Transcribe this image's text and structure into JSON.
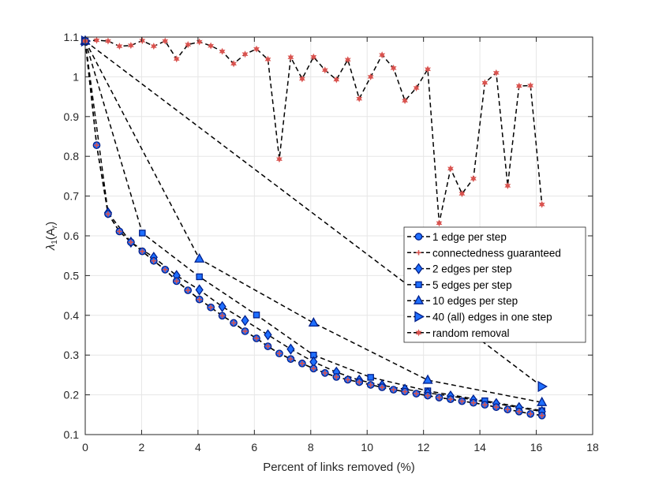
{
  "chart_data": {
    "type": "line",
    "title": "",
    "xlabel": "Percent of links removed (%)",
    "ylabel_main": "λ",
    "ylabel_sub": "1",
    "ylabel_arg": "(A",
    "ylabel_arg_sub": "r",
    "ylabel_close": ")",
    "xlim": [
      0,
      18
    ],
    "ylim": [
      0.1,
      1.1
    ],
    "x_ticks": [
      0,
      2,
      4,
      6,
      8,
      10,
      12,
      14,
      16,
      18
    ],
    "y_ticks": [
      0.1,
      0.2,
      0.3,
      0.4,
      0.5,
      0.6,
      0.7,
      0.8,
      0.9,
      1,
      1.1
    ],
    "x_tick_labels": [
      "0",
      "2",
      "4",
      "6",
      "8",
      "10",
      "12",
      "14",
      "16",
      "18"
    ],
    "y_tick_labels": [
      "0.1",
      "0.2",
      "0.3",
      "0.4",
      "0.5",
      "0.6",
      "0.7",
      "0.8",
      "0.9",
      "1",
      "1.1"
    ],
    "grid": true,
    "legend_position": "right-middle",
    "colors": {
      "blue_face": "#1f6fff",
      "blue_edge": "#00208c",
      "red_marker": "#d9534f",
      "line": "#000000"
    },
    "series": [
      {
        "name": "1 edge per step",
        "marker": "circle",
        "x": [
          0,
          0.405,
          0.81,
          1.215,
          1.62,
          2.025,
          2.43,
          2.835,
          3.24,
          3.645,
          4.05,
          4.455,
          4.86,
          5.265,
          5.67,
          6.075,
          6.48,
          6.885,
          7.29,
          7.695,
          8.1,
          8.505,
          8.91,
          9.315,
          9.72,
          10.125,
          10.53,
          10.935,
          11.34,
          11.745,
          12.15,
          12.555,
          12.96,
          13.365,
          13.77,
          14.175,
          14.58,
          14.985,
          15.39,
          15.795,
          16.2
        ],
        "y": [
          1.09,
          0.828,
          0.655,
          0.611,
          0.584,
          0.561,
          0.537,
          0.515,
          0.486,
          0.463,
          0.44,
          0.42,
          0.399,
          0.381,
          0.36,
          0.342,
          0.322,
          0.304,
          0.29,
          0.279,
          0.266,
          0.255,
          0.245,
          0.238,
          0.232,
          0.225,
          0.219,
          0.213,
          0.208,
          0.203,
          0.198,
          0.193,
          0.189,
          0.184,
          0.18,
          0.175,
          0.169,
          0.163,
          0.158,
          0.152,
          0.148
        ]
      },
      {
        "name": "connectedness guaranteed",
        "marker": "plus",
        "x": [
          0,
          0.405,
          0.81,
          1.215,
          1.62,
          2.025,
          2.43,
          2.835,
          3.24,
          3.645,
          4.05,
          4.455,
          4.86,
          5.265,
          5.67,
          6.075,
          6.48,
          6.885,
          7.29,
          7.695,
          8.1,
          8.505,
          8.91,
          9.315,
          9.72,
          10.125,
          10.53,
          10.935,
          11.34,
          11.745,
          12.15,
          12.555,
          12.96,
          13.365,
          13.77,
          14.175,
          14.58,
          14.985,
          15.39,
          15.795,
          16.2
        ],
        "y": [
          1.09,
          0.828,
          0.655,
          0.611,
          0.584,
          0.561,
          0.537,
          0.515,
          0.486,
          0.463,
          0.44,
          0.42,
          0.399,
          0.381,
          0.36,
          0.342,
          0.322,
          0.304,
          0.29,
          0.279,
          0.266,
          0.255,
          0.245,
          0.238,
          0.232,
          0.225,
          0.219,
          0.213,
          0.208,
          0.203,
          0.198,
          0.193,
          0.189,
          0.184,
          0.18,
          0.175,
          0.169,
          0.163,
          0.158,
          0.152,
          0.148
        ]
      },
      {
        "name": "2 edges per step",
        "marker": "diamond",
        "x": [
          0,
          0.81,
          1.62,
          2.43,
          3.24,
          4.05,
          4.86,
          5.67,
          6.48,
          7.29,
          8.1,
          8.91,
          9.72,
          10.53,
          11.34,
          12.15,
          12.96,
          13.77,
          14.58,
          15.39,
          16.2
        ],
        "y": [
          1.09,
          0.658,
          0.584,
          0.546,
          0.5,
          0.464,
          0.422,
          0.387,
          0.351,
          0.315,
          0.283,
          0.257,
          0.237,
          0.224,
          0.214,
          0.205,
          0.197,
          0.187,
          0.178,
          0.168,
          0.158
        ]
      },
      {
        "name": "5 edges per step",
        "marker": "square",
        "x": [
          0,
          2.025,
          4.05,
          6.075,
          8.1,
          10.125,
          12.15,
          14.175,
          16.2
        ],
        "y": [
          1.09,
          0.607,
          0.497,
          0.401,
          0.3,
          0.244,
          0.21,
          0.185,
          0.16
        ]
      },
      {
        "name": "10 edges per step",
        "marker": "triangle-up",
        "x": [
          0,
          4.05,
          8.1,
          12.15,
          16.2
        ],
        "y": [
          1.09,
          0.542,
          0.381,
          0.237,
          0.181
        ]
      },
      {
        "name": "40 (all) edges in one step",
        "marker": "triangle-right",
        "x": [
          0,
          16.2
        ],
        "y": [
          1.09,
          0.221
        ]
      },
      {
        "name": "random removal",
        "marker": "star",
        "x": [
          0,
          0.405,
          0.81,
          1.215,
          1.62,
          2.025,
          2.43,
          2.835,
          3.24,
          3.645,
          4.05,
          4.455,
          4.86,
          5.265,
          5.67,
          6.075,
          6.48,
          6.885,
          7.29,
          7.695,
          8.1,
          8.505,
          8.91,
          9.315,
          9.72,
          10.125,
          10.53,
          10.935,
          11.34,
          11.745,
          12.15,
          12.555,
          12.96,
          13.365,
          13.77,
          14.175,
          14.58,
          14.985,
          15.39,
          15.795,
          16.2
        ],
        "y": [
          1.09,
          1.092,
          1.09,
          1.077,
          1.079,
          1.091,
          1.077,
          1.09,
          1.045,
          1.081,
          1.088,
          1.078,
          1.064,
          1.033,
          1.057,
          1.07,
          1.044,
          0.793,
          1.049,
          0.995,
          1.05,
          1.017,
          0.993,
          1.043,
          0.945,
          1.0,
          1.055,
          1.022,
          0.94,
          0.972,
          1.019,
          0.632,
          0.769,
          0.706,
          0.744,
          0.985,
          1.01,
          0.726,
          0.977,
          0.978,
          0.679
        ]
      }
    ]
  }
}
